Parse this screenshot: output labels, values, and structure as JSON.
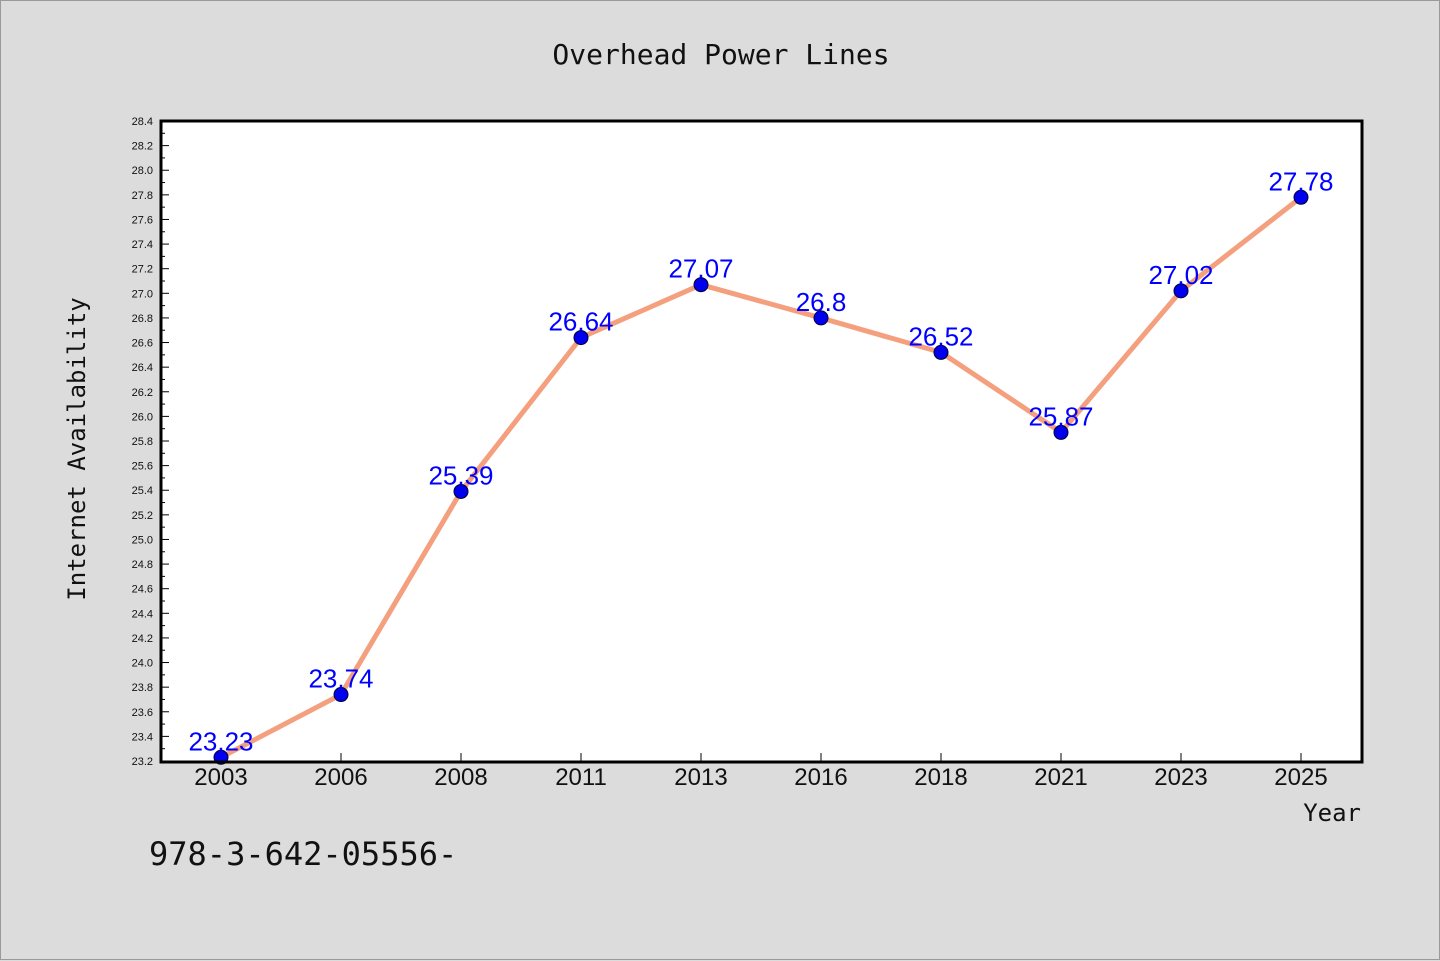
{
  "chart_data": {
    "type": "line",
    "title": "Overhead Power Lines",
    "xlabel": "Year",
    "ylabel": "Internet Availability",
    "categories": [
      "2003",
      "2006",
      "2008",
      "2011",
      "2013",
      "2016",
      "2018",
      "2021",
      "2023",
      "2025"
    ],
    "series": [
      {
        "values": [
          23.23,
          23.74,
          25.39,
          26.64,
          27.07,
          26.8,
          26.52,
          25.87,
          27.02,
          27.78
        ],
        "labels": [
          "23.23",
          "23.74",
          "25.39",
          "26.64",
          "27.07",
          "26.8",
          "26.52",
          "25.87",
          "27.02",
          "27.78"
        ]
      }
    ],
    "ylim": [
      23.2,
      28.4
    ],
    "yticks": [
      "23.2",
      "23.4",
      "23.6",
      "23.8",
      "24.0",
      "24.2",
      "24.4",
      "24.6",
      "24.8",
      "25.0",
      "25.2",
      "25.4",
      "25.6",
      "25.8",
      "26.0",
      "26.2",
      "26.4",
      "26.6",
      "26.8",
      "27.0",
      "27.2",
      "27.4",
      "27.6",
      "27.8",
      "28.0",
      "28.2",
      "28.4"
    ],
    "grid": false,
    "legend": "none",
    "colors": {
      "line": "#f4a07e",
      "marker": "#0000ee",
      "data_label": "#0000ff",
      "plot_background": "#ffffff",
      "page_background": "#dcdcdc"
    }
  },
  "footer": {
    "text": "978-3-642-05556-"
  }
}
